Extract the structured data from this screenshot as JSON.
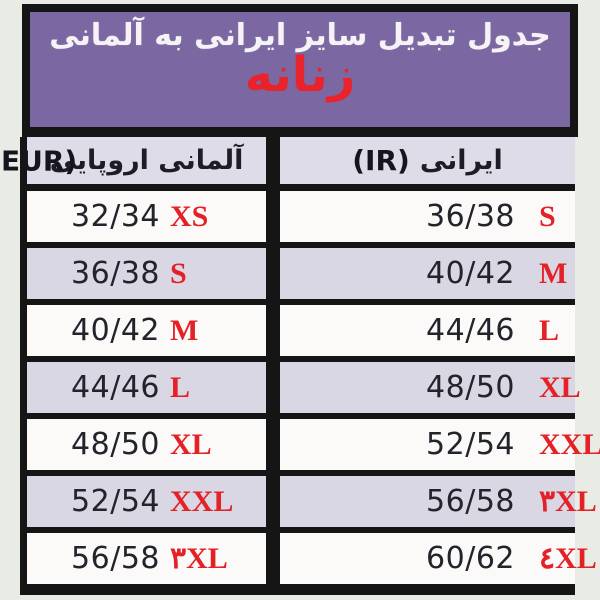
{
  "banner": {
    "title": "جدول تبدیل سایز ایرانی به آلمانی",
    "subtitle": "زنانه"
  },
  "table": {
    "header": {
      "left_fa": "آلمانی اروپایی",
      "left_code": "EUR)",
      "right_fa": "ایرانی",
      "right_code": "(IR)"
    },
    "rows": [
      {
        "eur": "32/34",
        "eur_size": "XS",
        "ir": "36/38",
        "ir_size": "S"
      },
      {
        "eur": "36/38",
        "eur_size": "S",
        "ir": "40/42",
        "ir_size": "M"
      },
      {
        "eur": "40/42",
        "eur_size": "M",
        "ir": "44/46",
        "ir_size": "L"
      },
      {
        "eur": "44/46",
        "eur_size": "L",
        "ir": "48/50",
        "ir_size": "XL"
      },
      {
        "eur": "48/50",
        "eur_size": "XL",
        "ir": "52/54",
        "ir_size": "XXL"
      },
      {
        "eur": "52/54",
        "eur_size": "XXL",
        "ir": "56/58",
        "ir_size": "۳XL"
      },
      {
        "eur": "56/58",
        "eur_size": "۳XL",
        "ir": "60/62",
        "ir_size": "٤XL"
      }
    ]
  },
  "colors": {
    "background": "#e8ece5",
    "banner_purple": "#7b68a2",
    "border_black": "#151515",
    "row_white": "#fbfaf8",
    "row_lavender": "#d9d7e3",
    "header_lavender": "#dedce8",
    "accent_red": "#e42127",
    "number_dark": "#23232b"
  }
}
